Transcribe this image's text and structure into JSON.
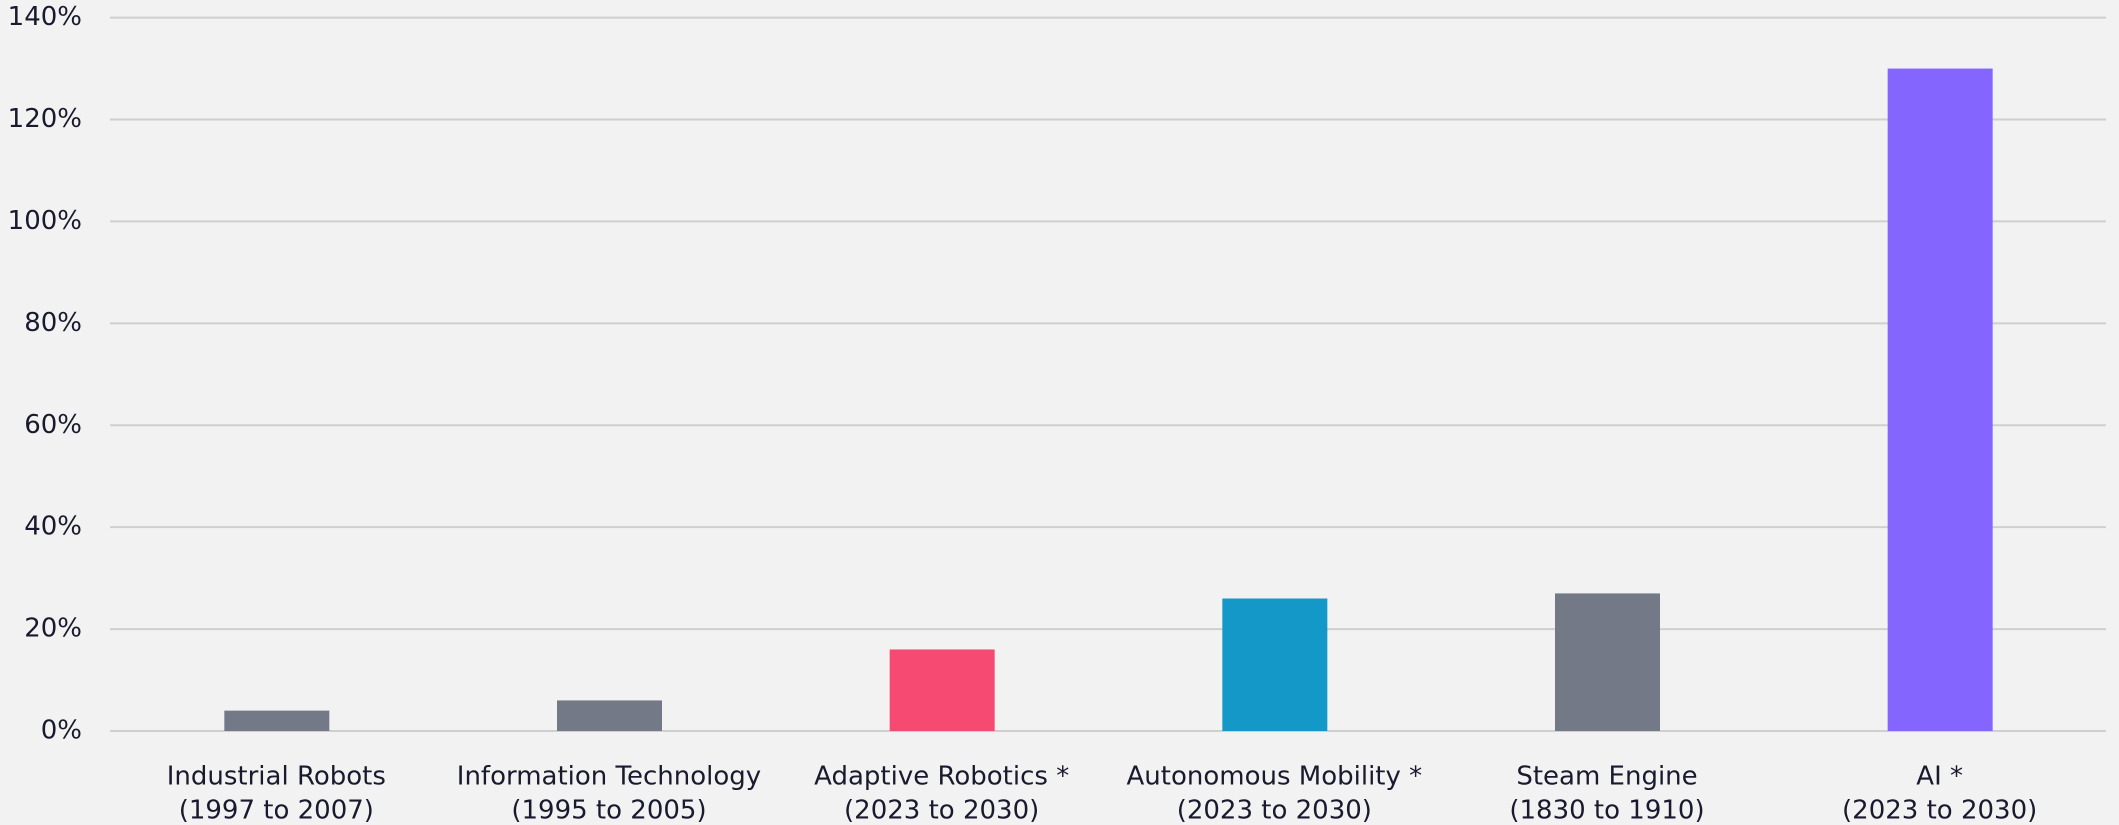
{
  "chart_data": {
    "type": "bar",
    "categories": [
      [
        "Industrial Robots",
        "(1997 to 2007)"
      ],
      [
        "Information Technology",
        "(1995 to 2005)"
      ],
      [
        "Adaptive Robotics *",
        "(2023 to 2030)"
      ],
      [
        "Autonomous Mobility  *",
        "(2023 to 2030)"
      ],
      [
        "Steam Engine",
        "(1830 to 1910)"
      ],
      [
        "AI *",
        "(2023 to 2030)"
      ]
    ],
    "values": [
      4,
      6,
      16,
      26,
      27,
      130
    ],
    "colors": [
      "#737987",
      "#737987",
      "#f74a72",
      "#1498c8",
      "#737987",
      "#8466ff"
    ],
    "ylim": [
      0,
      140
    ],
    "yticks": [
      {
        "value": 0,
        "label": "0%"
      },
      {
        "value": 20,
        "label": "20%"
      },
      {
        "value": 40,
        "label": "40%"
      },
      {
        "value": 60,
        "label": "60%"
      },
      {
        "value": 80,
        "label": "80%"
      },
      {
        "value": 100,
        "label": "100%"
      },
      {
        "value": 120,
        "label": "120%"
      },
      {
        "value": 140,
        "label": "140%"
      }
    ],
    "grid": true
  }
}
